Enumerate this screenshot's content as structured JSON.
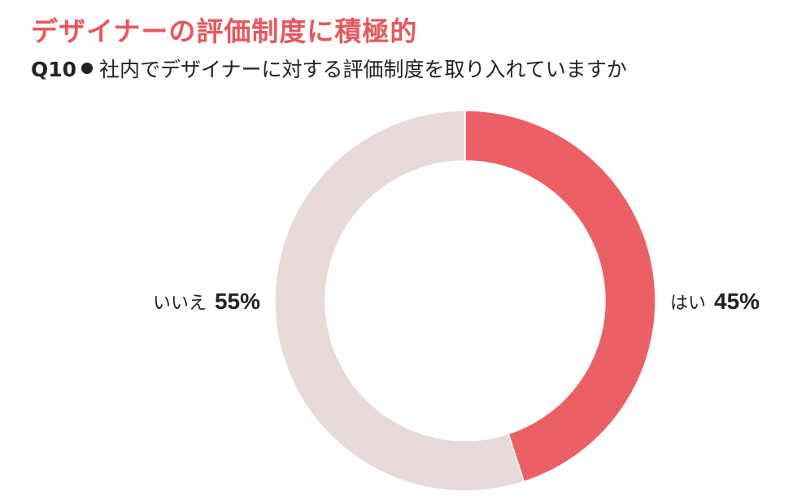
{
  "header": {
    "title": "デザイナーの評価制度に積極的",
    "question_number": "Q10",
    "question_text": "社内でデザイナーに対する評価制度を取り入れていますか"
  },
  "chart_data": {
    "type": "pie",
    "donut": true,
    "categories": [
      "はい",
      "いいえ"
    ],
    "values": [
      45,
      55
    ],
    "value_labels": [
      "45%",
      "55%"
    ],
    "colors": [
      "#eb6065",
      "#e8dad8"
    ],
    "start": "top",
    "direction": "clockwise",
    "title": "",
    "legend": "none"
  }
}
